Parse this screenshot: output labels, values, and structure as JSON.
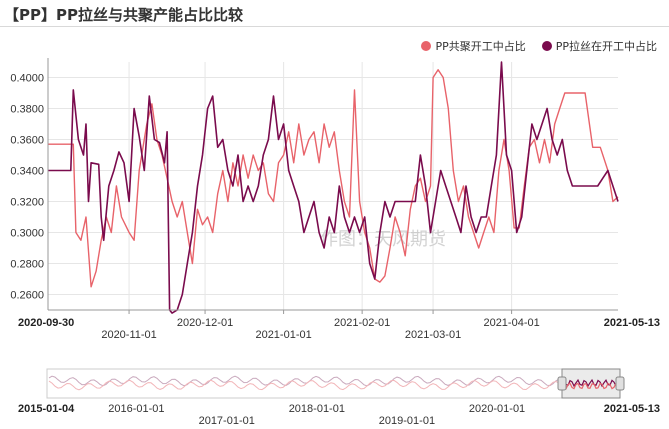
{
  "title": "【PP】PP拉丝与共聚产能占比比较",
  "watermark": "作图：天风期货",
  "colors": {
    "series1": "#e8636a",
    "series2": "#7a0b4d",
    "grid": "#e6e6e6",
    "axis": "#555555"
  },
  "chart_data": {
    "type": "line",
    "title": "【PP】PP拉丝与共聚产能占比比较",
    "legend_position": "top-right",
    "ylim": [
      0.25,
      0.41
    ],
    "yticks": [
      "0.2600",
      "0.2800",
      "0.3000",
      "0.3200",
      "0.3400",
      "0.3600",
      "0.3800",
      "0.4000"
    ],
    "xlim": [
      "2020-09-30",
      "2021-05-13"
    ],
    "x_range_labels": {
      "start": "2020-09-30",
      "end": "2021-05-13"
    },
    "x_tick_labels": [
      {
        "date": "2020-11-01",
        "text": "2020-11-01"
      },
      {
        "date": "2020-12-01",
        "text": "2020-12-01"
      },
      {
        "date": "2021-01-01",
        "text": "2021-01-01"
      },
      {
        "date": "2021-02-01",
        "text": "2021-02-01"
      },
      {
        "date": "2021-03-01",
        "text": "2021-03-01"
      },
      {
        "date": "2021-04-01",
        "text": "2021-04-01"
      }
    ],
    "series": [
      {
        "name": "PP共聚开工中占比",
        "color": "#e8636a",
        "points": [
          [
            "2020-09-30",
            0.357
          ],
          [
            "2020-10-10",
            0.357
          ],
          [
            "2020-10-11",
            0.3
          ],
          [
            "2020-10-13",
            0.295
          ],
          [
            "2020-10-15",
            0.31
          ],
          [
            "2020-10-17",
            0.265
          ],
          [
            "2020-10-19",
            0.275
          ],
          [
            "2020-10-21",
            0.295
          ],
          [
            "2020-10-23",
            0.31
          ],
          [
            "2020-10-25",
            0.3
          ],
          [
            "2020-10-27",
            0.33
          ],
          [
            "2020-10-29",
            0.31
          ],
          [
            "2020-11-01",
            0.3
          ],
          [
            "2020-11-03",
            0.295
          ],
          [
            "2020-11-05",
            0.34
          ],
          [
            "2020-11-08",
            0.37
          ],
          [
            "2020-11-10",
            0.383
          ],
          [
            "2020-11-12",
            0.36
          ],
          [
            "2020-11-14",
            0.35
          ],
          [
            "2020-11-16",
            0.335
          ],
          [
            "2020-11-18",
            0.32
          ],
          [
            "2020-11-20",
            0.31
          ],
          [
            "2020-11-22",
            0.32
          ],
          [
            "2020-11-24",
            0.3
          ],
          [
            "2020-11-26",
            0.28
          ],
          [
            "2020-11-28",
            0.315
          ],
          [
            "2020-11-30",
            0.305
          ],
          [
            "2020-12-02",
            0.31
          ],
          [
            "2020-12-04",
            0.3
          ],
          [
            "2020-12-06",
            0.325
          ],
          [
            "2020-12-08",
            0.34
          ],
          [
            "2020-12-10",
            0.32
          ],
          [
            "2020-12-12",
            0.345
          ],
          [
            "2020-12-14",
            0.33
          ],
          [
            "2020-12-16",
            0.35
          ],
          [
            "2020-12-18",
            0.335
          ],
          [
            "2020-12-20",
            0.35
          ],
          [
            "2020-12-22",
            0.34
          ],
          [
            "2020-12-24",
            0.345
          ],
          [
            "2020-12-26",
            0.325
          ],
          [
            "2020-12-28",
            0.32
          ],
          [
            "2020-12-30",
            0.345
          ],
          [
            "2021-01-01",
            0.35
          ],
          [
            "2021-01-03",
            0.365
          ],
          [
            "2021-01-05",
            0.345
          ],
          [
            "2021-01-07",
            0.37
          ],
          [
            "2021-01-09",
            0.35
          ],
          [
            "2021-01-11",
            0.36
          ],
          [
            "2021-01-13",
            0.365
          ],
          [
            "2021-01-15",
            0.345
          ],
          [
            "2021-01-17",
            0.37
          ],
          [
            "2021-01-19",
            0.355
          ],
          [
            "2021-01-21",
            0.365
          ],
          [
            "2021-01-23",
            0.34
          ],
          [
            "2021-01-25",
            0.32
          ],
          [
            "2021-01-27",
            0.31
          ],
          [
            "2021-01-29",
            0.392
          ],
          [
            "2021-01-31",
            0.32
          ],
          [
            "2021-02-02",
            0.3
          ],
          [
            "2021-02-04",
            0.29
          ],
          [
            "2021-02-06",
            0.27
          ],
          [
            "2021-02-08",
            0.268
          ],
          [
            "2021-02-10",
            0.272
          ],
          [
            "2021-02-12",
            0.29
          ],
          [
            "2021-02-14",
            0.31
          ],
          [
            "2021-02-16",
            0.3
          ],
          [
            "2021-02-18",
            0.285
          ],
          [
            "2021-02-20",
            0.315
          ],
          [
            "2021-02-22",
            0.33
          ],
          [
            "2021-02-24",
            0.335
          ],
          [
            "2021-02-26",
            0.32
          ],
          [
            "2021-02-28",
            0.33
          ],
          [
            "2021-03-01",
            0.4
          ],
          [
            "2021-03-03",
            0.405
          ],
          [
            "2021-03-05",
            0.4
          ],
          [
            "2021-03-07",
            0.38
          ],
          [
            "2021-03-09",
            0.34
          ],
          [
            "2021-03-11",
            0.32
          ],
          [
            "2021-03-13",
            0.33
          ],
          [
            "2021-03-15",
            0.31
          ],
          [
            "2021-03-17",
            0.3
          ],
          [
            "2021-03-19",
            0.29
          ],
          [
            "2021-03-21",
            0.3
          ],
          [
            "2021-03-23",
            0.31
          ],
          [
            "2021-03-25",
            0.3
          ],
          [
            "2021-03-27",
            0.34
          ],
          [
            "2021-03-29",
            0.36
          ],
          [
            "2021-03-31",
            0.34
          ],
          [
            "2021-04-02",
            0.303
          ],
          [
            "2021-04-04",
            0.303
          ],
          [
            "2021-04-06",
            0.33
          ],
          [
            "2021-04-08",
            0.355
          ],
          [
            "2021-04-10",
            0.36
          ],
          [
            "2021-04-12",
            0.345
          ],
          [
            "2021-04-14",
            0.36
          ],
          [
            "2021-04-16",
            0.345
          ],
          [
            "2021-04-18",
            0.37
          ],
          [
            "2021-04-20",
            0.38
          ],
          [
            "2021-04-22",
            0.39
          ],
          [
            "2021-04-24",
            0.39
          ],
          [
            "2021-04-28",
            0.39
          ],
          [
            "2021-04-30",
            0.39
          ],
          [
            "2021-05-03",
            0.355
          ],
          [
            "2021-05-06",
            0.355
          ],
          [
            "2021-05-09",
            0.34
          ],
          [
            "2021-05-11",
            0.32
          ],
          [
            "2021-05-13",
            0.323
          ]
        ]
      },
      {
        "name": "PP拉丝在开工中占比",
        "color": "#7a0b4d",
        "points": [
          [
            "2020-09-30",
            0.34
          ],
          [
            "2020-10-09",
            0.34
          ],
          [
            "2020-10-10",
            0.392
          ],
          [
            "2020-10-12",
            0.36
          ],
          [
            "2020-10-14",
            0.35
          ],
          [
            "2020-10-15",
            0.37
          ],
          [
            "2020-10-16",
            0.32
          ],
          [
            "2020-10-17",
            0.345
          ],
          [
            "2020-10-20",
            0.344
          ],
          [
            "2020-10-21",
            0.31
          ],
          [
            "2020-10-22",
            0.295
          ],
          [
            "2020-10-24",
            0.33
          ],
          [
            "2020-10-26",
            0.34
          ],
          [
            "2020-10-28",
            0.352
          ],
          [
            "2020-10-30",
            0.345
          ],
          [
            "2020-11-01",
            0.32
          ],
          [
            "2020-11-03",
            0.38
          ],
          [
            "2020-11-05",
            0.362
          ],
          [
            "2020-11-07",
            0.34
          ],
          [
            "2020-11-09",
            0.388
          ],
          [
            "2020-11-11",
            0.36
          ],
          [
            "2020-11-13",
            0.358
          ],
          [
            "2020-11-15",
            0.345
          ],
          [
            "2020-11-16",
            0.365
          ],
          [
            "2020-11-17",
            0.25
          ],
          [
            "2020-11-18",
            0.248
          ],
          [
            "2020-11-20",
            0.25
          ],
          [
            "2020-11-22",
            0.26
          ],
          [
            "2020-11-24",
            0.28
          ],
          [
            "2020-11-26",
            0.3
          ],
          [
            "2020-11-28",
            0.33
          ],
          [
            "2020-11-30",
            0.35
          ],
          [
            "2020-12-02",
            0.38
          ],
          [
            "2020-12-04",
            0.388
          ],
          [
            "2020-12-06",
            0.355
          ],
          [
            "2020-12-08",
            0.36
          ],
          [
            "2020-12-10",
            0.34
          ],
          [
            "2020-12-12",
            0.33
          ],
          [
            "2020-12-14",
            0.35
          ],
          [
            "2020-12-16",
            0.32
          ],
          [
            "2020-12-18",
            0.33
          ],
          [
            "2020-12-20",
            0.32
          ],
          [
            "2020-12-22",
            0.33
          ],
          [
            "2020-12-24",
            0.35
          ],
          [
            "2020-12-26",
            0.36
          ],
          [
            "2020-12-28",
            0.388
          ],
          [
            "2020-12-30",
            0.36
          ],
          [
            "2021-01-01",
            0.37
          ],
          [
            "2021-01-03",
            0.34
          ],
          [
            "2021-01-05",
            0.33
          ],
          [
            "2021-01-07",
            0.32
          ],
          [
            "2021-01-09",
            0.3
          ],
          [
            "2021-01-11",
            0.31
          ],
          [
            "2021-01-13",
            0.32
          ],
          [
            "2021-01-15",
            0.3
          ],
          [
            "2021-01-17",
            0.29
          ],
          [
            "2021-01-19",
            0.31
          ],
          [
            "2021-01-21",
            0.3
          ],
          [
            "2021-01-23",
            0.33
          ],
          [
            "2021-01-25",
            0.31
          ],
          [
            "2021-01-27",
            0.3
          ],
          [
            "2021-01-29",
            0.31
          ],
          [
            "2021-01-31",
            0.3
          ],
          [
            "2021-02-02",
            0.31
          ],
          [
            "2021-02-04",
            0.28
          ],
          [
            "2021-02-06",
            0.27
          ],
          [
            "2021-02-08",
            0.3
          ],
          [
            "2021-02-10",
            0.32
          ],
          [
            "2021-02-12",
            0.31
          ],
          [
            "2021-02-14",
            0.32
          ],
          [
            "2021-02-16",
            0.32
          ],
          [
            "2021-02-18",
            0.32
          ],
          [
            "2021-02-20",
            0.32
          ],
          [
            "2021-02-22",
            0.32
          ],
          [
            "2021-02-24",
            0.35
          ],
          [
            "2021-02-26",
            0.33
          ],
          [
            "2021-02-28",
            0.3
          ],
          [
            "2021-03-02",
            0.32
          ],
          [
            "2021-03-04",
            0.34
          ],
          [
            "2021-03-06",
            0.33
          ],
          [
            "2021-03-08",
            0.32
          ],
          [
            "2021-03-10",
            0.31
          ],
          [
            "2021-03-12",
            0.3
          ],
          [
            "2021-03-14",
            0.33
          ],
          [
            "2021-03-16",
            0.31
          ],
          [
            "2021-03-18",
            0.3
          ],
          [
            "2021-03-20",
            0.31
          ],
          [
            "2021-03-22",
            0.31
          ],
          [
            "2021-03-24",
            0.33
          ],
          [
            "2021-03-26",
            0.35
          ],
          [
            "2021-03-28",
            0.41
          ],
          [
            "2021-03-30",
            0.35
          ],
          [
            "2021-04-01",
            0.34
          ],
          [
            "2021-04-03",
            0.3
          ],
          [
            "2021-04-05",
            0.31
          ],
          [
            "2021-04-07",
            0.34
          ],
          [
            "2021-04-09",
            0.37
          ],
          [
            "2021-04-11",
            0.36
          ],
          [
            "2021-04-13",
            0.37
          ],
          [
            "2021-04-15",
            0.38
          ],
          [
            "2021-04-17",
            0.36
          ],
          [
            "2021-04-19",
            0.35
          ],
          [
            "2021-04-21",
            0.36
          ],
          [
            "2021-04-23",
            0.34
          ],
          [
            "2021-04-25",
            0.33
          ],
          [
            "2021-04-27",
            0.33
          ],
          [
            "2021-04-29",
            0.33
          ],
          [
            "2021-05-01",
            0.33
          ],
          [
            "2021-05-03",
            0.33
          ],
          [
            "2021-05-05",
            0.33
          ],
          [
            "2021-05-07",
            0.335
          ],
          [
            "2021-05-09",
            0.34
          ],
          [
            "2021-05-11",
            0.33
          ],
          [
            "2021-05-13",
            0.32
          ]
        ]
      }
    ]
  },
  "navigator": {
    "range_start": "2015-01-04",
    "range_end": "2021-05-13",
    "labels": [
      "2016-01-01",
      "2017-01-01",
      "2018-01-01",
      "2019-01-01",
      "2020-01-01"
    ]
  }
}
